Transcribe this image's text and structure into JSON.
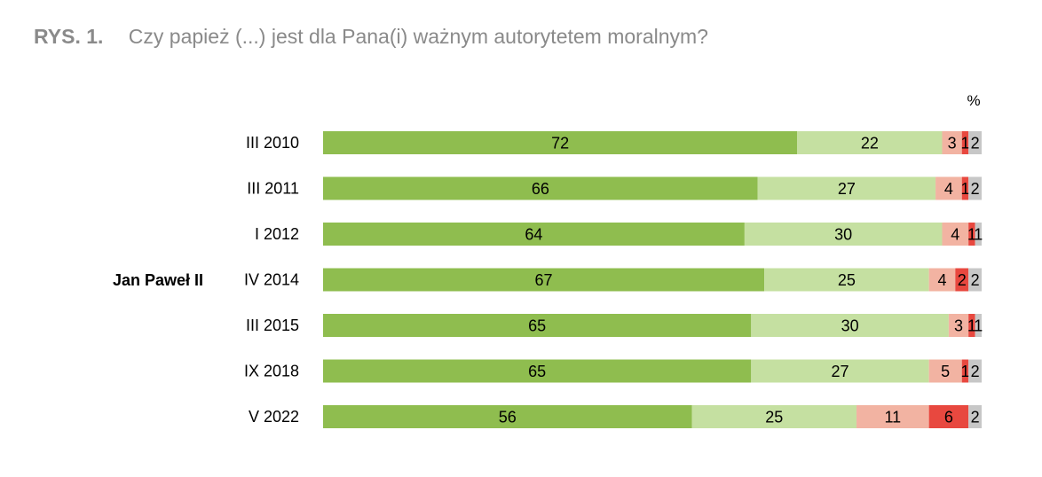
{
  "figure": {
    "label": "RYS. 1.",
    "title": "Czy papież (...) jest dla Pana(i) ważnym autorytetem moralnym?"
  },
  "chart_data": {
    "type": "bar",
    "orientation": "horizontal",
    "stacked": true,
    "unit": "%",
    "group_label": "Jan Paweł II",
    "categories": [
      "III 2010",
      "III 2011",
      "I 2012",
      "IV 2014",
      "III 2015",
      "IX 2018",
      "V 2022"
    ],
    "series": [
      {
        "color": "#8fbd4f",
        "values": [
          72,
          66,
          64,
          67,
          65,
          65,
          56
        ]
      },
      {
        "color": "#c5e0a1",
        "values": [
          22,
          27,
          30,
          25,
          30,
          27,
          25
        ]
      },
      {
        "color": "#f2b3a2",
        "values": [
          3,
          4,
          4,
          4,
          3,
          5,
          11
        ]
      },
      {
        "color": "#e8483f",
        "values": [
          1,
          1,
          1,
          2,
          1,
          1,
          6
        ]
      },
      {
        "color": "#c7c7c7",
        "values": [
          2,
          2,
          1,
          2,
          1,
          2,
          2
        ]
      }
    ],
    "xlim": [
      0,
      100
    ],
    "grid": false,
    "legend": "none"
  }
}
